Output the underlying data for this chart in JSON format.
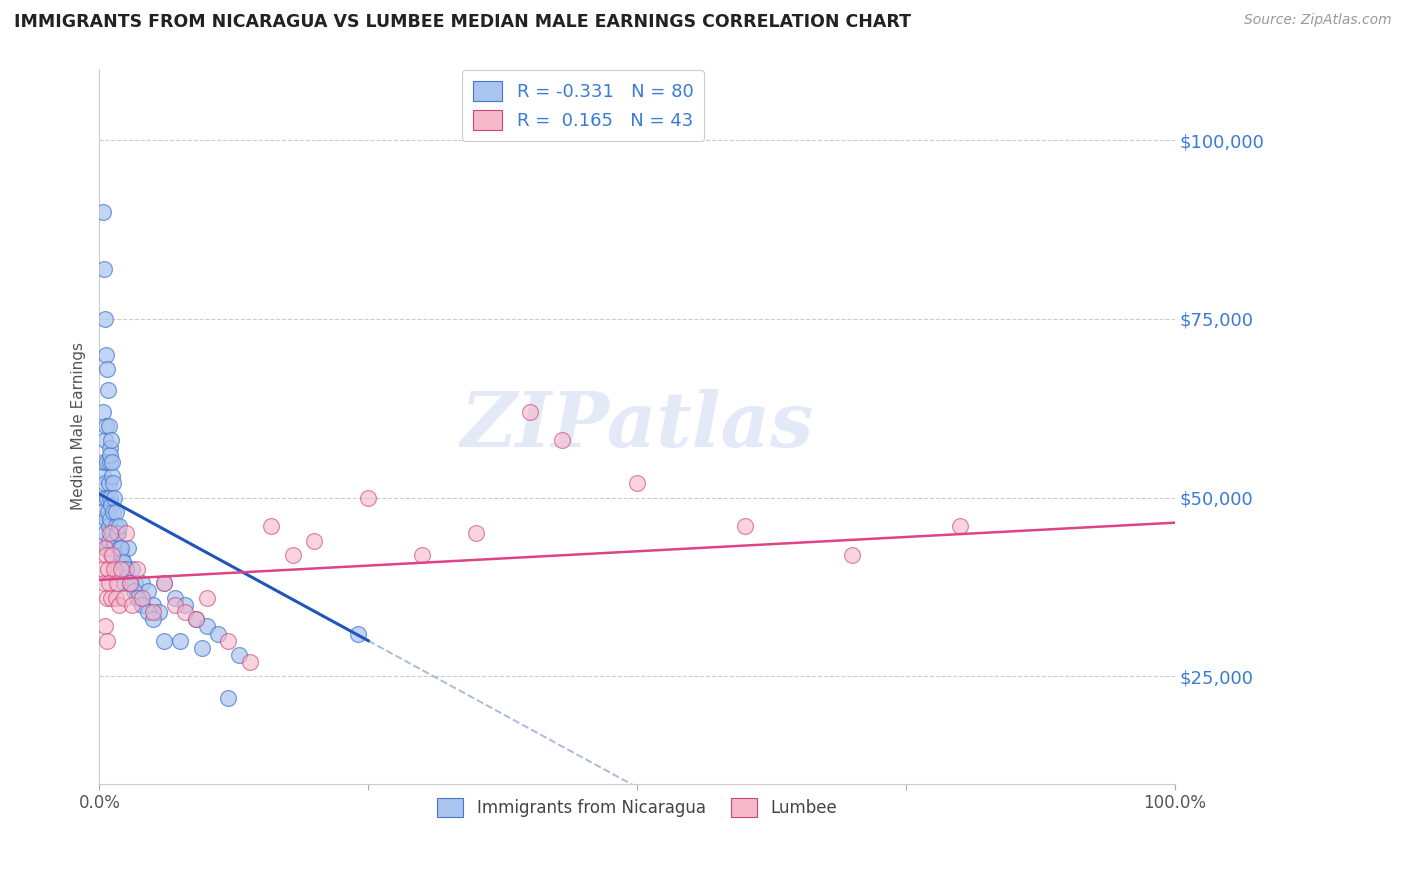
{
  "title": "IMMIGRANTS FROM NICARAGUA VS LUMBEE MEDIAN MALE EARNINGS CORRELATION CHART",
  "source_text": "Source: ZipAtlas.com",
  "ylabel": "Median Male Earnings",
  "y_tick_values": [
    25000,
    50000,
    75000,
    100000
  ],
  "y_tick_labels": [
    "$25,000",
    "$50,000",
    "$75,000",
    "$100,000"
  ],
  "x_range": [
    0.0,
    100.0
  ],
  "y_range": [
    10000,
    110000
  ],
  "watermark": "ZIPatlas",
  "blue_color": "#aac4f0",
  "blue_edge_color": "#4477cc",
  "pink_color": "#f5b8cb",
  "pink_edge_color": "#cc4477",
  "blue_line_color": "#2255bb",
  "pink_line_color": "#dd4488",
  "dashed_line_color": "#aabbdd",
  "grid_color": "#cccccc",
  "background_color": "#ffffff",
  "title_color": "#222222",
  "source_color": "#999999",
  "axis_label_color": "#555555",
  "right_tick_color": "#3a7bd5",
  "legend_text_color": "#3a7bd5",
  "bottom_legend_text_color": "#444444",
  "blue_r_text": "R = -0.331",
  "blue_n_text": "N = 80",
  "pink_r_text": "R =  0.165",
  "pink_n_text": "N = 43",
  "blue_label": "Immigrants from Nicaragua",
  "pink_label": "Lumbee",
  "blue_trend_x0": 0.0,
  "blue_trend_y0": 50500,
  "blue_trend_x1": 25.0,
  "blue_trend_y1": 30000,
  "blue_solid_end_x": 25.0,
  "blue_dash_end_x": 100.0,
  "pink_trend_x0": 0.0,
  "pink_trend_y0": 38500,
  "pink_trend_x1": 100.0,
  "pink_trend_y1": 46500,
  "blue_scatter_x": [
    0.2,
    0.3,
    0.35,
    0.4,
    0.45,
    0.5,
    0.5,
    0.55,
    0.6,
    0.65,
    0.7,
    0.7,
    0.75,
    0.8,
    0.85,
    0.85,
    0.9,
    0.95,
    1.0,
    1.0,
    1.05,
    1.1,
    1.15,
    1.2,
    1.25,
    1.3,
    1.4,
    1.5,
    1.6,
    1.7,
    1.8,
    2.0,
    2.2,
    2.3,
    2.5,
    2.7,
    3.0,
    3.3,
    3.7,
    4.0,
    4.5,
    5.0,
    5.5,
    6.0,
    7.0,
    8.0,
    9.0,
    10.0,
    11.0,
    12.0,
    0.3,
    0.4,
    0.5,
    0.6,
    0.7,
    0.8,
    0.9,
    1.0,
    1.0,
    1.1,
    1.2,
    1.3,
    1.4,
    1.5,
    1.6,
    1.8,
    2.0,
    2.2,
    2.5,
    2.8,
    3.2,
    3.5,
    4.0,
    4.5,
    5.0,
    6.0,
    7.5,
    9.5,
    13.0,
    24.0
  ],
  "blue_scatter_y": [
    48000,
    53000,
    62000,
    50000,
    55000,
    58000,
    45000,
    52000,
    47000,
    60000,
    50000,
    43000,
    55000,
    48000,
    46000,
    52000,
    44000,
    50000,
    47000,
    55000,
    42000,
    49000,
    53000,
    45000,
    48000,
    43000,
    44000,
    46000,
    40000,
    45000,
    43000,
    42000,
    41000,
    38000,
    40000,
    43000,
    40000,
    38000,
    36000,
    38000,
    37000,
    35000,
    34000,
    38000,
    36000,
    35000,
    33000,
    32000,
    31000,
    22000,
    90000,
    82000,
    75000,
    70000,
    68000,
    65000,
    60000,
    57000,
    56000,
    58000,
    55000,
    52000,
    50000,
    48000,
    45000,
    46000,
    43000,
    41000,
    40000,
    38000,
    37000,
    36000,
    35000,
    34000,
    33000,
    30000,
    30000,
    29000,
    28000,
    31000
  ],
  "pink_scatter_x": [
    0.3,
    0.4,
    0.5,
    0.6,
    0.7,
    0.8,
    0.9,
    1.0,
    1.1,
    1.2,
    1.4,
    1.5,
    1.6,
    1.8,
    2.0,
    2.3,
    2.5,
    2.8,
    3.0,
    3.5,
    4.0,
    5.0,
    6.0,
    7.0,
    8.0,
    9.0,
    10.0,
    12.0,
    14.0,
    16.0,
    18.0,
    20.0,
    25.0,
    30.0,
    35.0,
    40.0,
    50.0,
    60.0,
    70.0,
    80.0,
    0.5,
    0.7,
    43.0
  ],
  "pink_scatter_y": [
    40000,
    38000,
    43000,
    42000,
    36000,
    40000,
    38000,
    45000,
    36000,
    42000,
    40000,
    36000,
    38000,
    35000,
    40000,
    36000,
    45000,
    38000,
    35000,
    40000,
    36000,
    34000,
    38000,
    35000,
    34000,
    33000,
    36000,
    30000,
    27000,
    46000,
    42000,
    44000,
    50000,
    42000,
    45000,
    62000,
    52000,
    46000,
    42000,
    46000,
    32000,
    30000,
    58000
  ]
}
